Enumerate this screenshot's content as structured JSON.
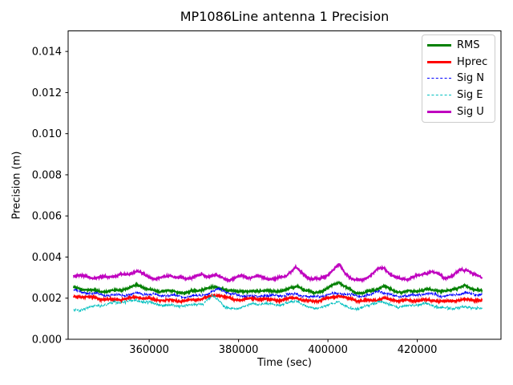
{
  "figure": {
    "background": "#ffffff",
    "text_color": "#000000",
    "spine_color": "#000000"
  },
  "chart_data": {
    "type": "line",
    "title": "MP1086Line antenna 1 Precision",
    "xlabel": "Time (sec)",
    "ylabel": "Precision (m)",
    "xlim": [
      341860,
      438730
    ],
    "ylim": [
      0,
      0.015
    ],
    "grid": false,
    "legend_position": "upper right",
    "xticks": {
      "values": [
        360000,
        380000,
        400000,
        420000
      ],
      "labels": [
        "360000",
        "380000",
        "400000",
        "420000"
      ]
    },
    "yticks": {
      "values": [
        0.0,
        0.002,
        0.004,
        0.006,
        0.008,
        0.01,
        0.012,
        0.014
      ],
      "labels": [
        "0.000",
        "0.002",
        "0.004",
        "0.006",
        "0.008",
        "0.010",
        "0.012",
        "0.014"
      ]
    },
    "sampling": {
      "t_start": 343100,
      "t_end": 434500,
      "dt": 60,
      "seed": 1086
    },
    "series": [
      {
        "name": "RMS",
        "color": "#008000",
        "style": "solid",
        "linewidth": 1.8,
        "noise": 6e-05,
        "keypoints": [
          [
            343100,
            0.00248
          ],
          [
            345000,
            0.00242
          ],
          [
            347500,
            0.00236
          ],
          [
            350000,
            0.00234
          ],
          [
            353000,
            0.0024
          ],
          [
            355500,
            0.00248
          ],
          [
            357400,
            0.00264
          ],
          [
            359500,
            0.00243
          ],
          [
            361500,
            0.00231
          ],
          [
            364000,
            0.00239
          ],
          [
            366500,
            0.00231
          ],
          [
            368500,
            0.00229
          ],
          [
            371000,
            0.00237
          ],
          [
            373500,
            0.00247
          ],
          [
            375000,
            0.00251
          ],
          [
            376500,
            0.00246
          ],
          [
            378000,
            0.00234
          ],
          [
            380500,
            0.00239
          ],
          [
            382500,
            0.00231
          ],
          [
            385000,
            0.00237
          ],
          [
            388000,
            0.0023
          ],
          [
            390500,
            0.00239
          ],
          [
            393200,
            0.00262
          ],
          [
            395000,
            0.00239
          ],
          [
            397000,
            0.00228
          ],
          [
            399500,
            0.0024
          ],
          [
            402400,
            0.00278
          ],
          [
            404200,
            0.00247
          ],
          [
            406000,
            0.00229
          ],
          [
            408000,
            0.00227
          ],
          [
            410500,
            0.00243
          ],
          [
            412500,
            0.0026
          ],
          [
            414500,
            0.00236
          ],
          [
            416500,
            0.00227
          ],
          [
            418500,
            0.00231
          ],
          [
            420500,
            0.00237
          ],
          [
            422500,
            0.00244
          ],
          [
            424500,
            0.00241
          ],
          [
            426500,
            0.00233
          ],
          [
            428500,
            0.00246
          ],
          [
            430500,
            0.00258
          ],
          [
            432000,
            0.00243
          ],
          [
            434500,
            0.00238
          ]
        ]
      },
      {
        "name": "Hprec",
        "color": "#ff0000",
        "style": "solid",
        "linewidth": 1.8,
        "noise": 6.5e-05,
        "keypoints": [
          [
            343100,
            0.00204
          ],
          [
            345500,
            0.00207
          ],
          [
            348000,
            0.00199
          ],
          [
            351000,
            0.00194
          ],
          [
            354000,
            0.00197
          ],
          [
            357400,
            0.00204
          ],
          [
            359500,
            0.00195
          ],
          [
            362000,
            0.00189
          ],
          [
            365000,
            0.00192
          ],
          [
            368000,
            0.00189
          ],
          [
            371000,
            0.00194
          ],
          [
            373500,
            0.00204
          ],
          [
            375500,
            0.00214
          ],
          [
            377000,
            0.00204
          ],
          [
            379000,
            0.00194
          ],
          [
            381500,
            0.00197
          ],
          [
            384000,
            0.00199
          ],
          [
            386500,
            0.00191
          ],
          [
            389000,
            0.00187
          ],
          [
            392800,
            0.00203
          ],
          [
            394500,
            0.00191
          ],
          [
            396500,
            0.00187
          ],
          [
            399000,
            0.00194
          ],
          [
            402400,
            0.00209
          ],
          [
            404500,
            0.00197
          ],
          [
            407000,
            0.00187
          ],
          [
            410000,
            0.00191
          ],
          [
            412500,
            0.00199
          ],
          [
            415000,
            0.00189
          ],
          [
            418000,
            0.00185
          ],
          [
            421000,
            0.00189
          ],
          [
            424000,
            0.00191
          ],
          [
            426500,
            0.00185
          ],
          [
            429000,
            0.00189
          ],
          [
            431500,
            0.00191
          ],
          [
            434500,
            0.00187
          ]
        ]
      },
      {
        "name": "Sig N",
        "color": "#0000ff",
        "style": "dashed",
        "linewidth": 1.1,
        "noise": 7.5e-05,
        "keypoints": [
          [
            343100,
            0.00238
          ],
          [
            345000,
            0.00228
          ],
          [
            347000,
            0.00221
          ],
          [
            349500,
            0.00217
          ],
          [
            352000,
            0.00214
          ],
          [
            355000,
            0.00219
          ],
          [
            357400,
            0.00226
          ],
          [
            360000,
            0.00217
          ],
          [
            362500,
            0.00211
          ],
          [
            365000,
            0.00214
          ],
          [
            368000,
            0.00209
          ],
          [
            371000,
            0.00214
          ],
          [
            373500,
            0.00221
          ],
          [
            375800,
            0.00247
          ],
          [
            376800,
            0.00233
          ],
          [
            378000,
            0.00217
          ],
          [
            380500,
            0.00214
          ],
          [
            383000,
            0.00211
          ],
          [
            386000,
            0.00214
          ],
          [
            389000,
            0.00209
          ],
          [
            392800,
            0.0022
          ],
          [
            394500,
            0.00211
          ],
          [
            396500,
            0.00207
          ],
          [
            399000,
            0.00214
          ],
          [
            402400,
            0.00226
          ],
          [
            404500,
            0.00214
          ],
          [
            407000,
            0.00209
          ],
          [
            409500,
            0.00214
          ],
          [
            411300,
            0.00239
          ],
          [
            412800,
            0.00226
          ],
          [
            415000,
            0.00211
          ],
          [
            418000,
            0.00209
          ],
          [
            421000,
            0.00217
          ],
          [
            423500,
            0.00221
          ],
          [
            426000,
            0.00211
          ],
          [
            428500,
            0.00219
          ],
          [
            430500,
            0.00227
          ],
          [
            432500,
            0.00217
          ],
          [
            434500,
            0.00219
          ]
        ]
      },
      {
        "name": "Sig E",
        "color": "#00bfbf",
        "style": "dashed",
        "linewidth": 1.1,
        "noise": 8e-05,
        "keypoints": [
          [
            343100,
            0.00142
          ],
          [
            344500,
            0.00144
          ],
          [
            346000,
            0.00155
          ],
          [
            348500,
            0.00164
          ],
          [
            351000,
            0.0017
          ],
          [
            354000,
            0.00179
          ],
          [
            357400,
            0.0019
          ],
          [
            359500,
            0.00184
          ],
          [
            362000,
            0.0017
          ],
          [
            364500,
            0.00164
          ],
          [
            367000,
            0.0016
          ],
          [
            369500,
            0.00165
          ],
          [
            372000,
            0.00175
          ],
          [
            374200,
            0.00213
          ],
          [
            375500,
            0.00198
          ],
          [
            377000,
            0.00155
          ],
          [
            379000,
            0.00146
          ],
          [
            381000,
            0.00156
          ],
          [
            383500,
            0.0017
          ],
          [
            386000,
            0.00174
          ],
          [
            388500,
            0.00169
          ],
          [
            391000,
            0.00176
          ],
          [
            393200,
            0.00188
          ],
          [
            395000,
            0.00158
          ],
          [
            397000,
            0.00148
          ],
          [
            400000,
            0.00164
          ],
          [
            402400,
            0.00188
          ],
          [
            404500,
            0.00154
          ],
          [
            406500,
            0.0015
          ],
          [
            409000,
            0.0016
          ],
          [
            411500,
            0.00184
          ],
          [
            413500,
            0.00169
          ],
          [
            416000,
            0.00159
          ],
          [
            418500,
            0.00167
          ],
          [
            421000,
            0.00174
          ],
          [
            423500,
            0.00164
          ],
          [
            425500,
            0.0015
          ],
          [
            427500,
            0.00147
          ],
          [
            430000,
            0.00159
          ],
          [
            432000,
            0.00157
          ],
          [
            434500,
            0.00154
          ]
        ]
      },
      {
        "name": "Sig U",
        "color": "#bf00bf",
        "style": "solid",
        "linewidth": 1.8,
        "noise": 7e-05,
        "keypoints": [
          [
            343100,
            0.0031
          ],
          [
            345600,
            0.00308
          ],
          [
            348000,
            0.003
          ],
          [
            350500,
            0.00305
          ],
          [
            353000,
            0.00308
          ],
          [
            355500,
            0.00315
          ],
          [
            357400,
            0.0033
          ],
          [
            359500,
            0.00307
          ],
          [
            361500,
            0.00295
          ],
          [
            363500,
            0.00307
          ],
          [
            364800,
            0.00314
          ],
          [
            366500,
            0.00296
          ],
          [
            368500,
            0.00294
          ],
          [
            370500,
            0.00305
          ],
          [
            371800,
            0.00312
          ],
          [
            373000,
            0.00304
          ],
          [
            374500,
            0.00317
          ],
          [
            376000,
            0.00304
          ],
          [
            377500,
            0.00292
          ],
          [
            379500,
            0.003
          ],
          [
            380800,
            0.00308
          ],
          [
            382500,
            0.00299
          ],
          [
            384500,
            0.00304
          ],
          [
            386500,
            0.00292
          ],
          [
            388500,
            0.00296
          ],
          [
            390300,
            0.00308
          ],
          [
            392800,
            0.00352
          ],
          [
            394500,
            0.00315
          ],
          [
            396000,
            0.00295
          ],
          [
            398000,
            0.0029
          ],
          [
            400000,
            0.00312
          ],
          [
            402400,
            0.00362
          ],
          [
            404000,
            0.00322
          ],
          [
            405800,
            0.00293
          ],
          [
            407500,
            0.00288
          ],
          [
            409500,
            0.0031
          ],
          [
            411300,
            0.0034
          ],
          [
            412500,
            0.00348
          ],
          [
            414000,
            0.00313
          ],
          [
            415500,
            0.00296
          ],
          [
            417500,
            0.00294
          ],
          [
            419500,
            0.00308
          ],
          [
            421500,
            0.0032
          ],
          [
            423000,
            0.00331
          ],
          [
            424800,
            0.00315
          ],
          [
            426300,
            0.00297
          ],
          [
            428000,
            0.00307
          ],
          [
            429700,
            0.00338
          ],
          [
            431200,
            0.00339
          ],
          [
            432500,
            0.00318
          ],
          [
            433800,
            0.00308
          ],
          [
            434500,
            0.00301
          ]
        ]
      }
    ]
  }
}
